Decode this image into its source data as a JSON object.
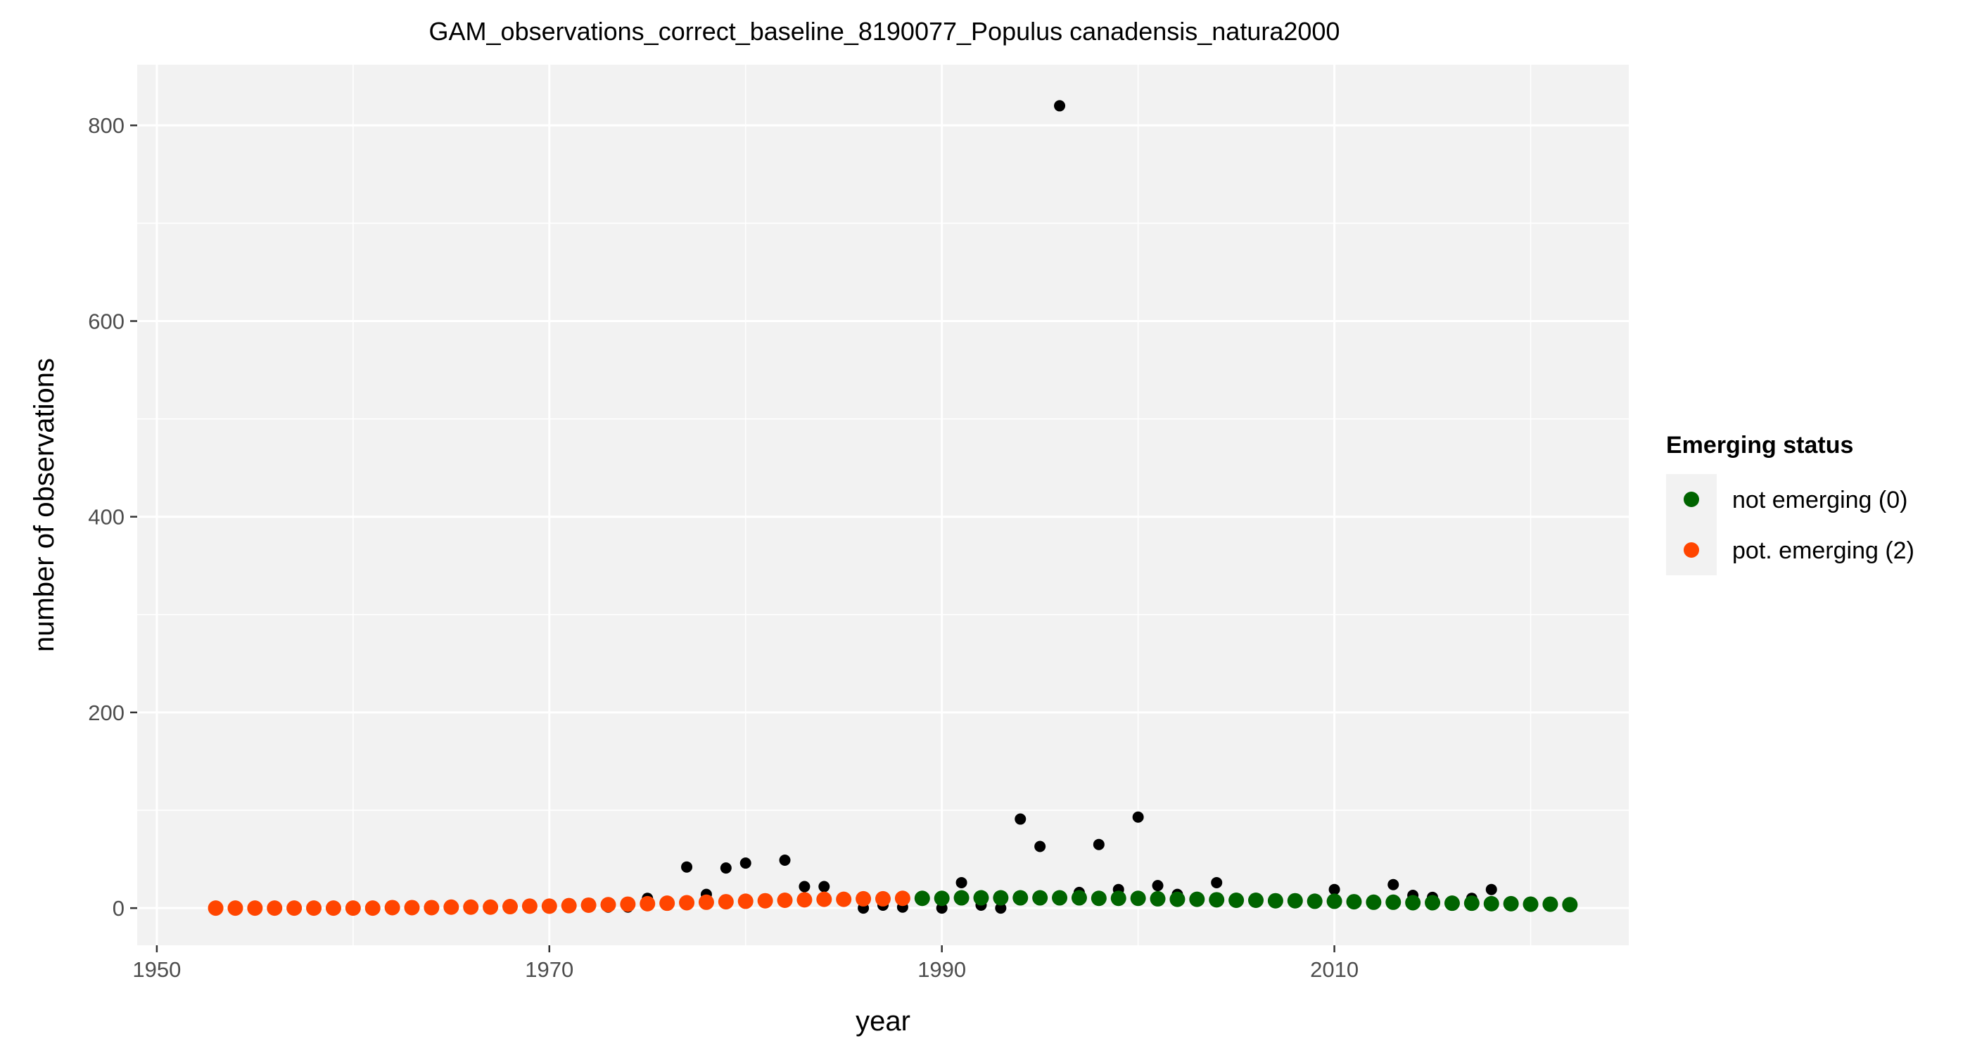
{
  "chart_data": {
    "type": "scatter",
    "title": "GAM_observations_correct_baseline_8190077_Populus canadensis_natura2000",
    "xlabel": "year",
    "ylabel": "number of observations",
    "xlim": [
      1949,
      2025
    ],
    "ylim": [
      -38,
      862
    ],
    "x_ticks": [
      1950,
      1970,
      1990,
      2010
    ],
    "y_ticks": [
      0,
      200,
      400,
      600,
      800
    ],
    "x_tick_labels": [
      "1950",
      "1970",
      "1990",
      "2010"
    ],
    "y_tick_labels": [
      "0",
      "200",
      "400",
      "600",
      "800"
    ],
    "grid": true,
    "panel_background": "#f2f2f2",
    "legend": {
      "title": "Emerging status",
      "position": "right",
      "entries": [
        {
          "label": "not emerging (0)",
          "color": "#006400"
        },
        {
          "label": "pot. emerging (2)",
          "color": "#ff4500"
        }
      ]
    },
    "series": [
      {
        "kind": "observations",
        "color": "#000000",
        "points": [
          [
            1969,
            1
          ],
          [
            1970,
            1
          ],
          [
            1971,
            1
          ],
          [
            1973,
            1
          ],
          [
            1974,
            1
          ],
          [
            1975,
            10
          ],
          [
            1976,
            3
          ],
          [
            1977,
            42
          ],
          [
            1978,
            14
          ],
          [
            1979,
            41
          ],
          [
            1980,
            46
          ],
          [
            1981,
            9
          ],
          [
            1982,
            49
          ],
          [
            1983,
            22
          ],
          [
            1984,
            22
          ],
          [
            1986,
            0
          ],
          [
            1987,
            3
          ],
          [
            1988,
            1
          ],
          [
            1990,
            0
          ],
          [
            1991,
            26
          ],
          [
            1992,
            3
          ],
          [
            1993,
            0
          ],
          [
            1994,
            91
          ],
          [
            1995,
            63
          ],
          [
            1996,
            820
          ],
          [
            1997,
            16
          ],
          [
            1998,
            65
          ],
          [
            1999,
            19
          ],
          [
            2000,
            93
          ],
          [
            2001,
            23
          ],
          [
            2002,
            14
          ],
          [
            2004,
            26
          ],
          [
            2010,
            19
          ],
          [
            2013,
            24
          ],
          [
            2014,
            13
          ],
          [
            2015,
            11
          ],
          [
            2017,
            10
          ],
          [
            2018,
            19
          ],
          [
            2020,
            6
          ]
        ]
      },
      {
        "kind": "gam_fit",
        "legend_label": "pot. emerging (2)",
        "color": "#ff4500",
        "points": [
          [
            1953,
            0
          ],
          [
            1954,
            0
          ],
          [
            1955,
            0
          ],
          [
            1956,
            0
          ],
          [
            1957,
            0
          ],
          [
            1958,
            0
          ],
          [
            1959,
            0
          ],
          [
            1960,
            0
          ],
          [
            1961,
            0
          ],
          [
            1962,
            0.5
          ],
          [
            1963,
            0.5
          ],
          [
            1964,
            0.5
          ],
          [
            1965,
            1
          ],
          [
            1966,
            1
          ],
          [
            1967,
            1
          ],
          [
            1968,
            1.5
          ],
          [
            1969,
            2
          ],
          [
            1970,
            2
          ],
          [
            1971,
            2.5
          ],
          [
            1972,
            3
          ],
          [
            1973,
            3.5
          ],
          [
            1974,
            4
          ],
          [
            1975,
            4.5
          ],
          [
            1976,
            5
          ],
          [
            1977,
            5.5
          ],
          [
            1978,
            6
          ],
          [
            1979,
            6.5
          ],
          [
            1980,
            7
          ],
          [
            1981,
            7.5
          ],
          [
            1982,
            8
          ],
          [
            1983,
            8.5
          ],
          [
            1984,
            9
          ],
          [
            1985,
            9
          ],
          [
            1986,
            9.5
          ],
          [
            1987,
            9.5
          ],
          [
            1988,
            10
          ]
        ]
      },
      {
        "kind": "gam_fit",
        "legend_label": "not emerging (0)",
        "color": "#006400",
        "points": [
          [
            1989,
            10
          ],
          [
            1990,
            10
          ],
          [
            1991,
            10.5
          ],
          [
            1992,
            10.5
          ],
          [
            1993,
            10.5
          ],
          [
            1994,
            10.5
          ],
          [
            1995,
            10.5
          ],
          [
            1996,
            10.5
          ],
          [
            1997,
            10.5
          ],
          [
            1998,
            10
          ],
          [
            1999,
            10
          ],
          [
            2000,
            10
          ],
          [
            2001,
            9.5
          ],
          [
            2002,
            9
          ],
          [
            2003,
            9
          ],
          [
            2004,
            8.5
          ],
          [
            2005,
            8
          ],
          [
            2006,
            8
          ],
          [
            2007,
            7.5
          ],
          [
            2008,
            7.5
          ],
          [
            2009,
            7
          ],
          [
            2010,
            7
          ],
          [
            2011,
            6.5
          ],
          [
            2012,
            6
          ],
          [
            2013,
            6
          ],
          [
            2014,
            5.5
          ],
          [
            2015,
            5.5
          ],
          [
            2016,
            5
          ],
          [
            2017,
            5
          ],
          [
            2018,
            4.5
          ],
          [
            2019,
            4.5
          ],
          [
            2020,
            4
          ],
          [
            2021,
            4
          ],
          [
            2022,
            3.5
          ]
        ]
      }
    ]
  }
}
